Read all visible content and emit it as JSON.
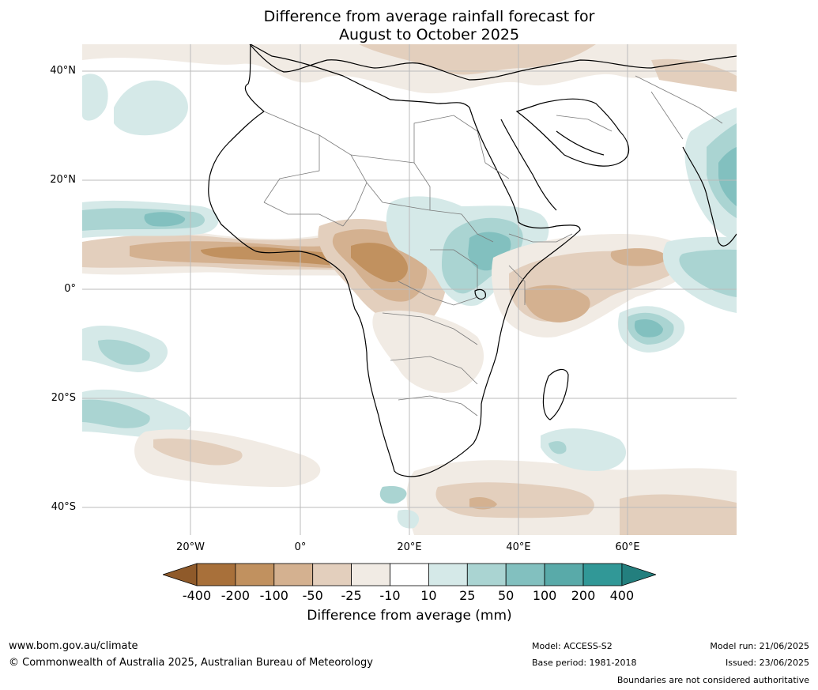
{
  "title": {
    "line1": "Difference from average rainfall forecast for",
    "line2": "August to October 2025"
  },
  "axes": {
    "lat_labels": [
      "40°N",
      "20°N",
      "0°",
      "20°S",
      "40°S"
    ],
    "lon_labels": [
      "20°W",
      "0°",
      "20°E",
      "40°E",
      "60°E"
    ]
  },
  "colorbar": {
    "ticks": [
      "-400",
      "-200",
      "-100",
      "-50",
      "-25",
      "-10",
      "10",
      "25",
      "50",
      "100",
      "200",
      "400"
    ],
    "label": "Difference from average (mm)",
    "colors": [
      "#a8703a",
      "#c1915f",
      "#d4b190",
      "#e3cfbd",
      "#f1ebe4",
      "#ffffff",
      "#d5e9e8",
      "#aad4d2",
      "#82c0bf",
      "#59aaa9",
      "#319897"
    ]
  },
  "footer": {
    "website": "www.bom.gov.au/climate",
    "copyright": "© Commonwealth of Australia 2025, Australian Bureau of Meteorology",
    "model": "Model: ACCESS-S2",
    "base_period": "Base period: 1981-2018",
    "model_run": "Model run: 21/06/2025",
    "issued": "Issued: 23/06/2025",
    "disclaimer": "Boundaries are not considered authoritative"
  }
}
